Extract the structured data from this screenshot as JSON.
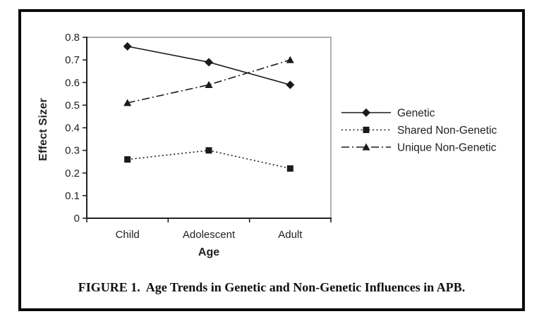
{
  "figure": {
    "caption": "FIGURE 1.  Age Trends in Genetic and Non-Genetic Influences in APB."
  },
  "chart_data": {
    "type": "line",
    "categories": [
      "Child",
      "Adolescent",
      "Adult"
    ],
    "series": [
      {
        "name": "Genetic",
        "values": [
          0.76,
          0.69,
          0.59
        ],
        "line_style": "solid",
        "marker": "diamond"
      },
      {
        "name": "Shared Non-Genetic",
        "values": [
          0.26,
          0.3,
          0.22
        ],
        "line_style": "dotted",
        "marker": "square"
      },
      {
        "name": "Unique Non-Genetic",
        "values": [
          0.51,
          0.59,
          0.7
        ],
        "line_style": "dashdot",
        "marker": "triangle"
      }
    ],
    "xlabel": "Age",
    "ylabel": "Effect Sizer",
    "ylim": [
      0,
      0.8
    ],
    "ytick_labels": [
      "0",
      "0.1",
      "0.2",
      "0.3",
      "0.4",
      "0.5",
      "0.6",
      "0.7",
      "0.8"
    ],
    "grid": false,
    "legend_position": "right",
    "line_color": "#1a1a1a",
    "frame_color": "#9a9a9a"
  }
}
